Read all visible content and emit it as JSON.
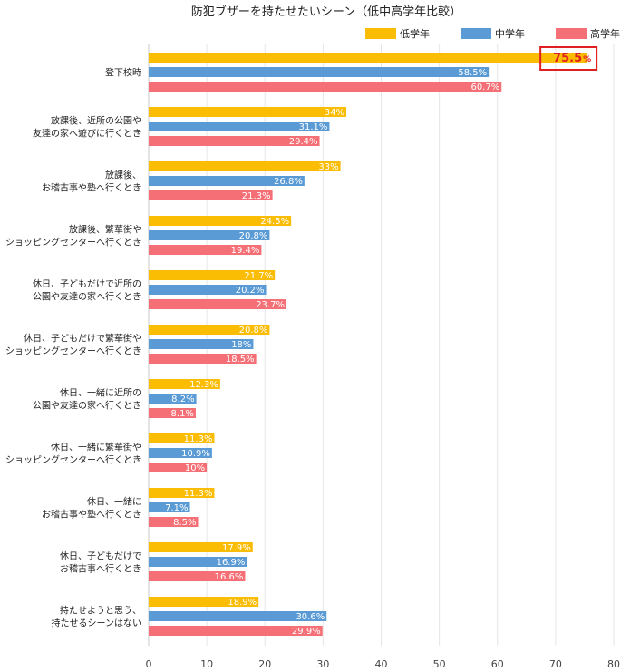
{
  "chart_data": {
    "type": "bar",
    "orientation": "horizontal",
    "title": "防犯ブザーを持たせたいシーン（低中高学年比較）",
    "categories": [
      [
        "登下校時"
      ],
      [
        "放課後、近所の公園や",
        "友達の家へ遊びに行くとき"
      ],
      [
        "放課後、",
        "お稽古事や塾へ行くとき"
      ],
      [
        "放課後、繁華街や",
        "ショッピングセンターへ行くとき"
      ],
      [
        "休日、子どもだけで近所の",
        "公園や友達の家へ行くとき"
      ],
      [
        "休日、子どもだけで繁華街や",
        "ショッピングセンターへ行くとき"
      ],
      [
        "休日、一緒に近所の",
        "公園や友達の家へ行くとき"
      ],
      [
        "休日、一緒に繁華街や",
        "ショッピングセンターへ行くとき"
      ],
      [
        "休日、一緒に",
        "お稽古事や塾へ行くとき"
      ],
      [
        "休日、子どもだけで",
        "お稽古事へ行くとき"
      ],
      [
        "持たせようと思う、",
        "持たせるシーンはない"
      ]
    ],
    "series": [
      {
        "name": "低学年",
        "color": "#fbbc04",
        "values": [
          75.5,
          34,
          33,
          24.5,
          21.7,
          20.8,
          12.3,
          11.3,
          11.3,
          17.9,
          18.9
        ],
        "labels": [
          "75.5",
          "34%",
          "33%",
          "24.5%",
          "21.7%",
          "20.8%",
          "12.3%",
          "11.3%",
          "11.3%",
          "17.9%",
          "18.9%"
        ]
      },
      {
        "name": "中学年",
        "color": "#5b9bd5",
        "values": [
          58.5,
          31.1,
          26.8,
          20.8,
          20.2,
          18,
          8.2,
          10.9,
          7.1,
          16.9,
          30.6
        ],
        "labels": [
          "58.5%",
          "31.1%",
          "26.8%",
          "20.8%",
          "20.2%",
          "18%",
          "8.2%",
          "10.9%",
          "7.1%",
          "16.9%",
          "30.6%"
        ]
      },
      {
        "name": "高学年",
        "color": "#f47076",
        "values": [
          60.7,
          29.4,
          21.3,
          19.4,
          23.7,
          18.5,
          8.1,
          10,
          8.5,
          16.6,
          29.9
        ],
        "labels": [
          "60.7%",
          "29.4%",
          "21.3%",
          "19.4%",
          "23.7%",
          "18.5%",
          "8.1%",
          "10%",
          "8.5%",
          "16.6%",
          "29.9%"
        ]
      }
    ],
    "xlim": [
      0,
      80
    ],
    "xticks": [
      0,
      10,
      20,
      30,
      40,
      50,
      60,
      70,
      80
    ],
    "grid": true,
    "legend_position": "top-right",
    "highlight": {
      "series_index": 0,
      "category_index": 0,
      "value_text": "75.5",
      "unit_text": "%",
      "color": "#e02020"
    }
  }
}
